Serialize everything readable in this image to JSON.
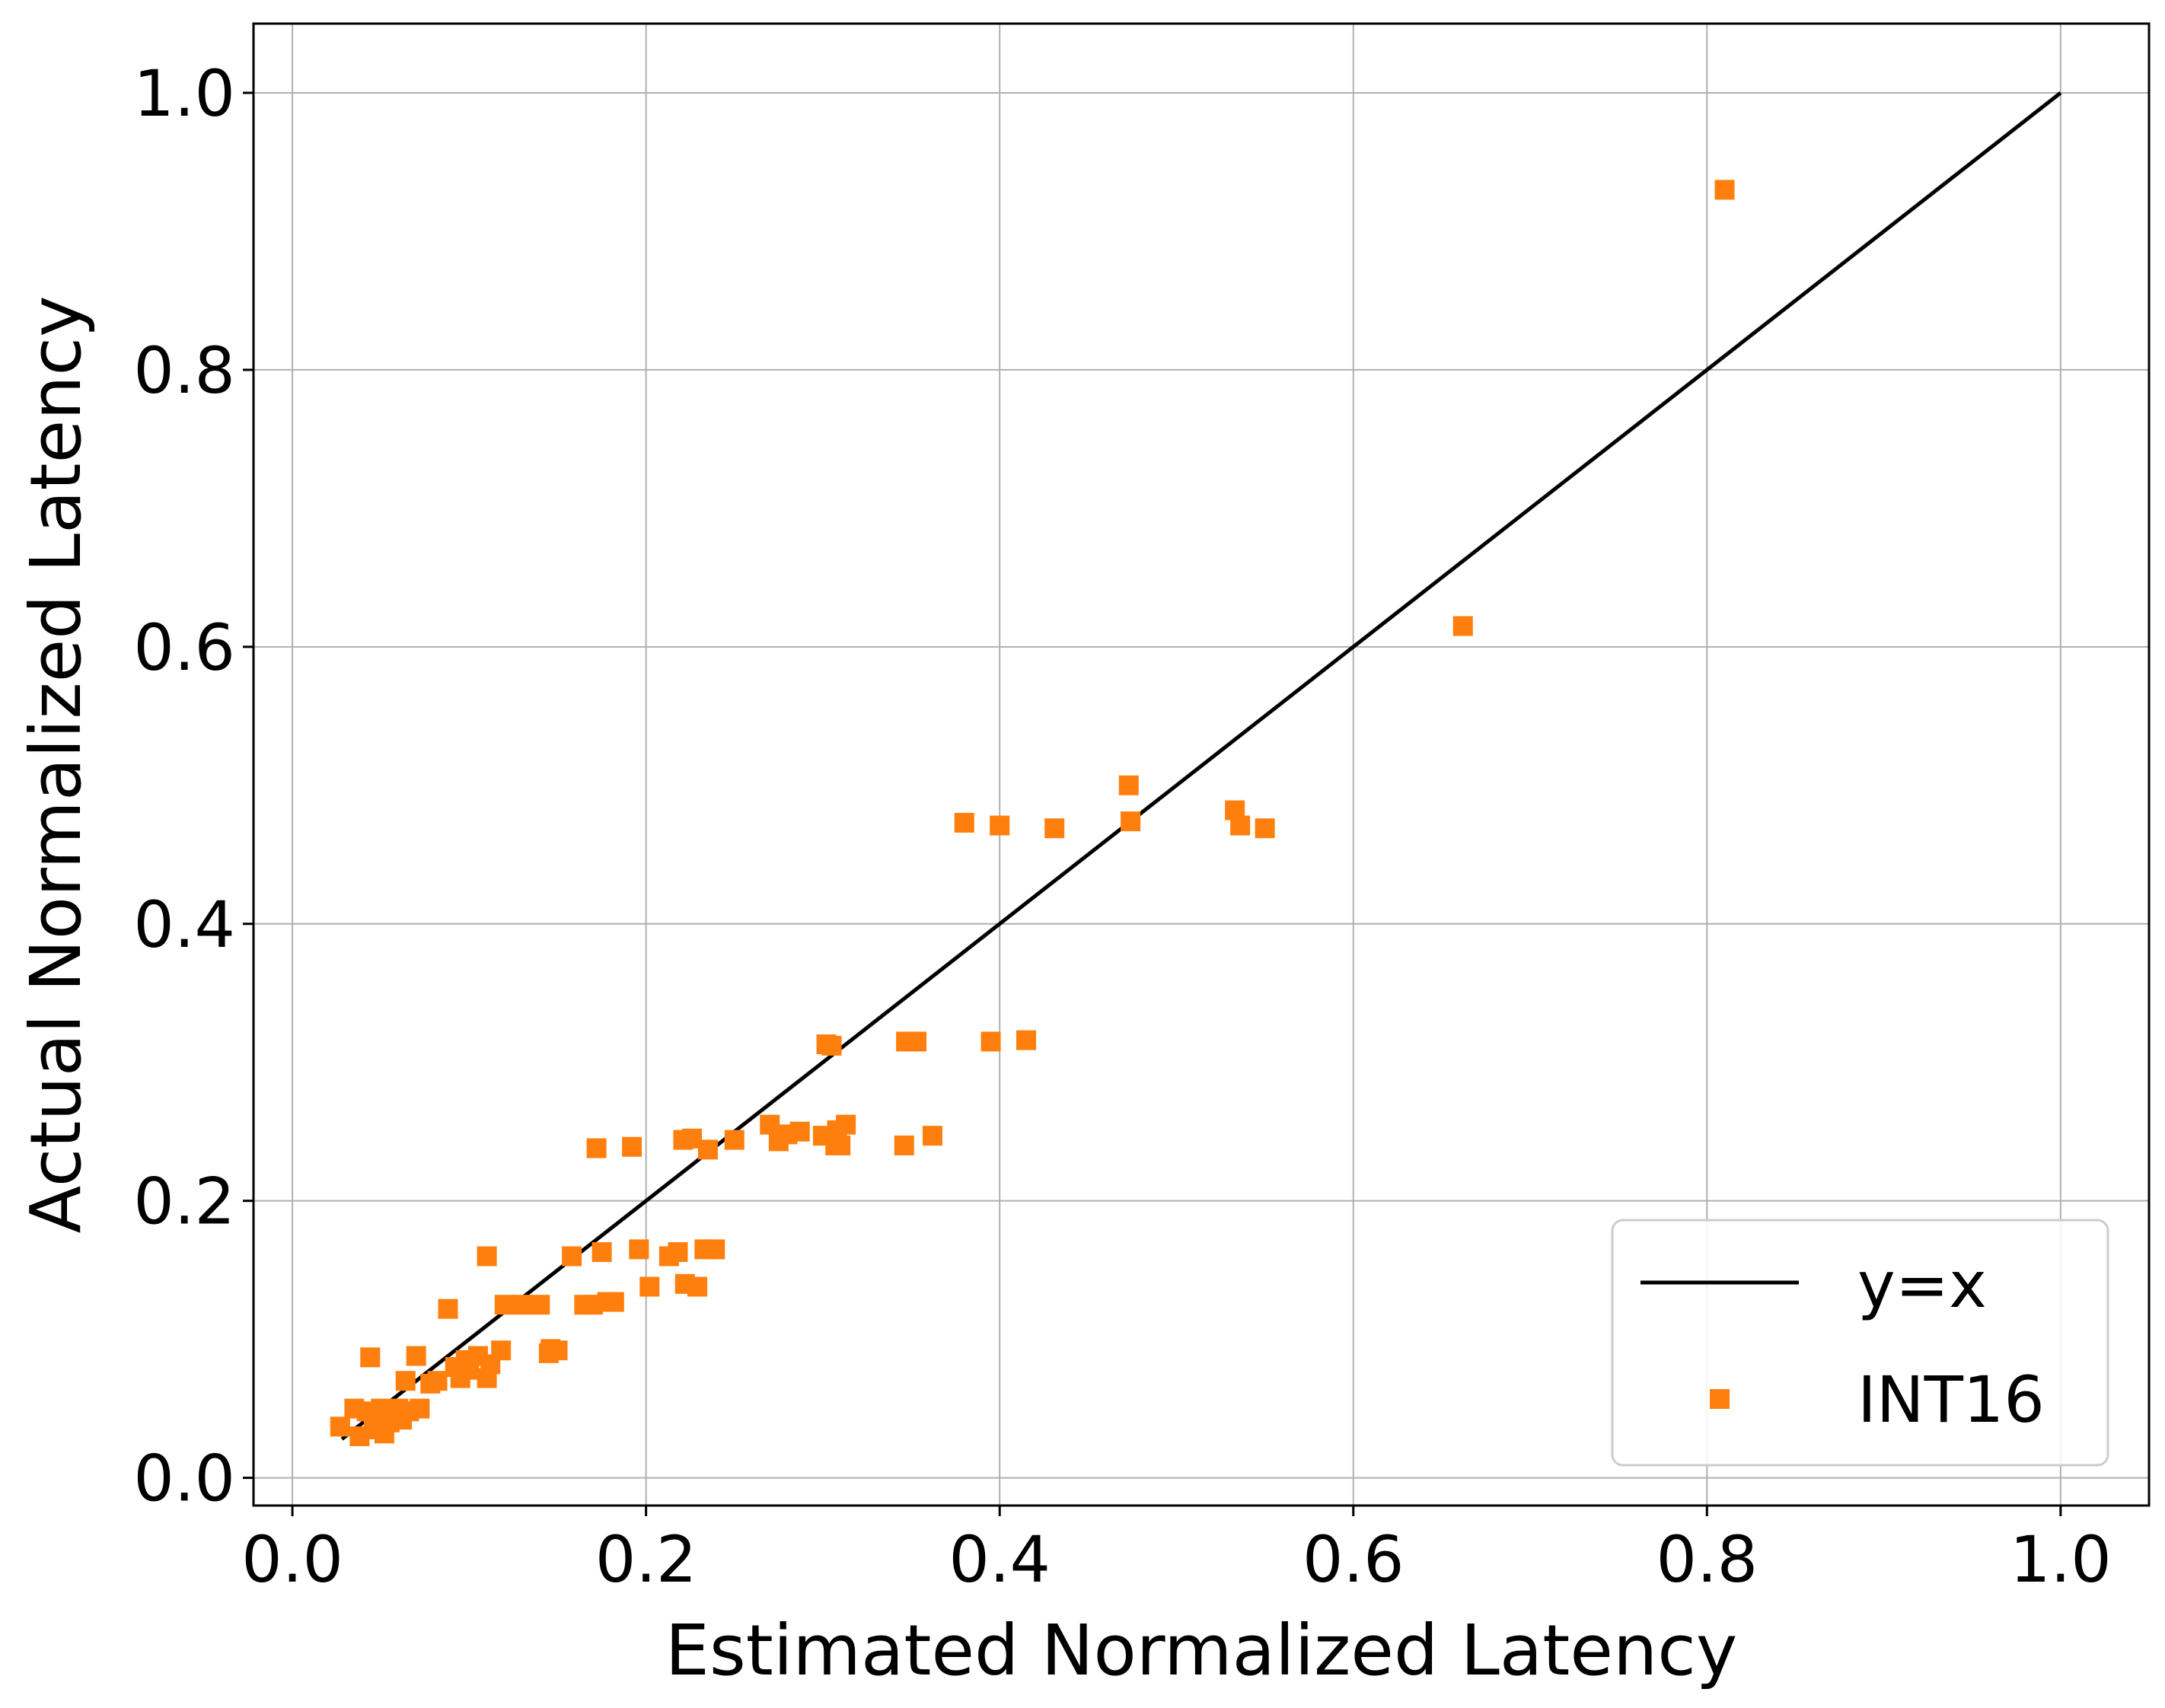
{
  "chart_data": {
    "type": "scatter",
    "title": "",
    "xlabel": "Estimated Normalized Latency",
    "ylabel": "Actual Normalized Latency",
    "xlim": [
      -0.022,
      1.05
    ],
    "ylim": [
      -0.02,
      1.05
    ],
    "xticks": [
      0.0,
      0.2,
      0.4,
      0.6,
      0.8,
      1.0
    ],
    "yticks": [
      0.0,
      0.2,
      0.4,
      0.6,
      0.8,
      1.0
    ],
    "xtick_labels": [
      "0.0",
      "0.2",
      "0.4",
      "0.6",
      "0.8",
      "1.0"
    ],
    "ytick_labels": [
      "0.0",
      "0.2",
      "0.4",
      "0.6",
      "0.8",
      "1.0"
    ],
    "grid": true,
    "legend_position": "bottom-right",
    "legend": [
      "y=x",
      "INT16"
    ],
    "series": [
      {
        "name": "y=x",
        "kind": "line",
        "color": "#000000",
        "x": [
          0.028,
          1.0
        ],
        "y": [
          0.028,
          1.0
        ]
      },
      {
        "name": "INT16",
        "kind": "scatter",
        "marker": "square",
        "color": "#ff7f0e",
        "points": [
          [
            0.027,
            0.037
          ],
          [
            0.035,
            0.05
          ],
          [
            0.038,
            0.03
          ],
          [
            0.042,
            0.048
          ],
          [
            0.044,
            0.087
          ],
          [
            0.046,
            0.035
          ],
          [
            0.048,
            0.045
          ],
          [
            0.05,
            0.05
          ],
          [
            0.052,
            0.032
          ],
          [
            0.055,
            0.04
          ],
          [
            0.058,
            0.045
          ],
          [
            0.06,
            0.05
          ],
          [
            0.062,
            0.042
          ],
          [
            0.064,
            0.07
          ],
          [
            0.066,
            0.048
          ],
          [
            0.07,
            0.088
          ],
          [
            0.072,
            0.05
          ],
          [
            0.078,
            0.068
          ],
          [
            0.082,
            0.07
          ],
          [
            0.088,
            0.122
          ],
          [
            0.092,
            0.08
          ],
          [
            0.095,
            0.072
          ],
          [
            0.098,
            0.085
          ],
          [
            0.1,
            0.078
          ],
          [
            0.105,
            0.088
          ],
          [
            0.11,
            0.072
          ],
          [
            0.11,
            0.16
          ],
          [
            0.112,
            0.082
          ],
          [
            0.118,
            0.092
          ],
          [
            0.12,
            0.125
          ],
          [
            0.13,
            0.125
          ],
          [
            0.14,
            0.125
          ],
          [
            0.145,
            0.09
          ],
          [
            0.146,
            0.093
          ],
          [
            0.15,
            0.092
          ],
          [
            0.158,
            0.16
          ],
          [
            0.165,
            0.125
          ],
          [
            0.17,
            0.125
          ],
          [
            0.172,
            0.238
          ],
          [
            0.175,
            0.163
          ],
          [
            0.178,
            0.127
          ],
          [
            0.182,
            0.127
          ],
          [
            0.192,
            0.239
          ],
          [
            0.196,
            0.165
          ],
          [
            0.202,
            0.138
          ],
          [
            0.213,
            0.16
          ],
          [
            0.218,
            0.163
          ],
          [
            0.221,
            0.244
          ],
          [
            0.222,
            0.14
          ],
          [
            0.226,
            0.245
          ],
          [
            0.229,
            0.138
          ],
          [
            0.233,
            0.165
          ],
          [
            0.235,
            0.237
          ],
          [
            0.239,
            0.165
          ],
          [
            0.25,
            0.244
          ],
          [
            0.27,
            0.255
          ],
          [
            0.275,
            0.243
          ],
          [
            0.28,
            0.248
          ],
          [
            0.287,
            0.25
          ],
          [
            0.3,
            0.247
          ],
          [
            0.302,
            0.313
          ],
          [
            0.305,
            0.312
          ],
          [
            0.307,
            0.24
          ],
          [
            0.308,
            0.251
          ],
          [
            0.31,
            0.24
          ],
          [
            0.313,
            0.255
          ],
          [
            0.346,
            0.24
          ],
          [
            0.347,
            0.315
          ],
          [
            0.353,
            0.315
          ],
          [
            0.362,
            0.247
          ],
          [
            0.38,
            0.473
          ],
          [
            0.395,
            0.315
          ],
          [
            0.4,
            0.471
          ],
          [
            0.415,
            0.316
          ],
          [
            0.431,
            0.469
          ],
          [
            0.473,
            0.5
          ],
          [
            0.474,
            0.474
          ],
          [
            0.533,
            0.482
          ],
          [
            0.536,
            0.471
          ],
          [
            0.55,
            0.469
          ],
          [
            0.662,
            0.615
          ],
          [
            0.81,
            0.93
          ]
        ]
      }
    ]
  }
}
